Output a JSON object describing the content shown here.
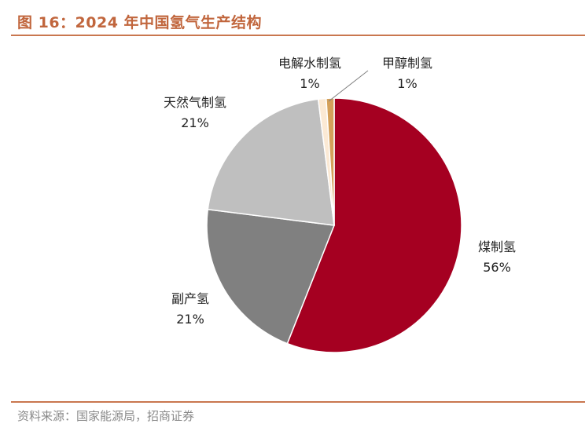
{
  "header": {
    "title": "图 16：2024 年中国氢气生产结构"
  },
  "footer": {
    "source": "资料来源：国家能源局，招商证券"
  },
  "chart_data": {
    "type": "pie",
    "title": "2024 年中国氢气生产结构",
    "start_angle_deg": 0,
    "direction": "clockwise",
    "slices": [
      {
        "name": "煤制氢",
        "value": 56,
        "label": "56%",
        "color": "#a50021"
      },
      {
        "name": "副产氢",
        "value": 21,
        "label": "21%",
        "color": "#808080"
      },
      {
        "name": "天然气制氢",
        "value": 21,
        "label": "21%",
        "color": "#bfbfbf"
      },
      {
        "name": "电解水制氢",
        "value": 1,
        "label": "1%",
        "color": "#fbe9d4"
      },
      {
        "name": "甲醇制氢",
        "value": 1,
        "label": "1%",
        "color": "#d4a05a"
      }
    ]
  }
}
